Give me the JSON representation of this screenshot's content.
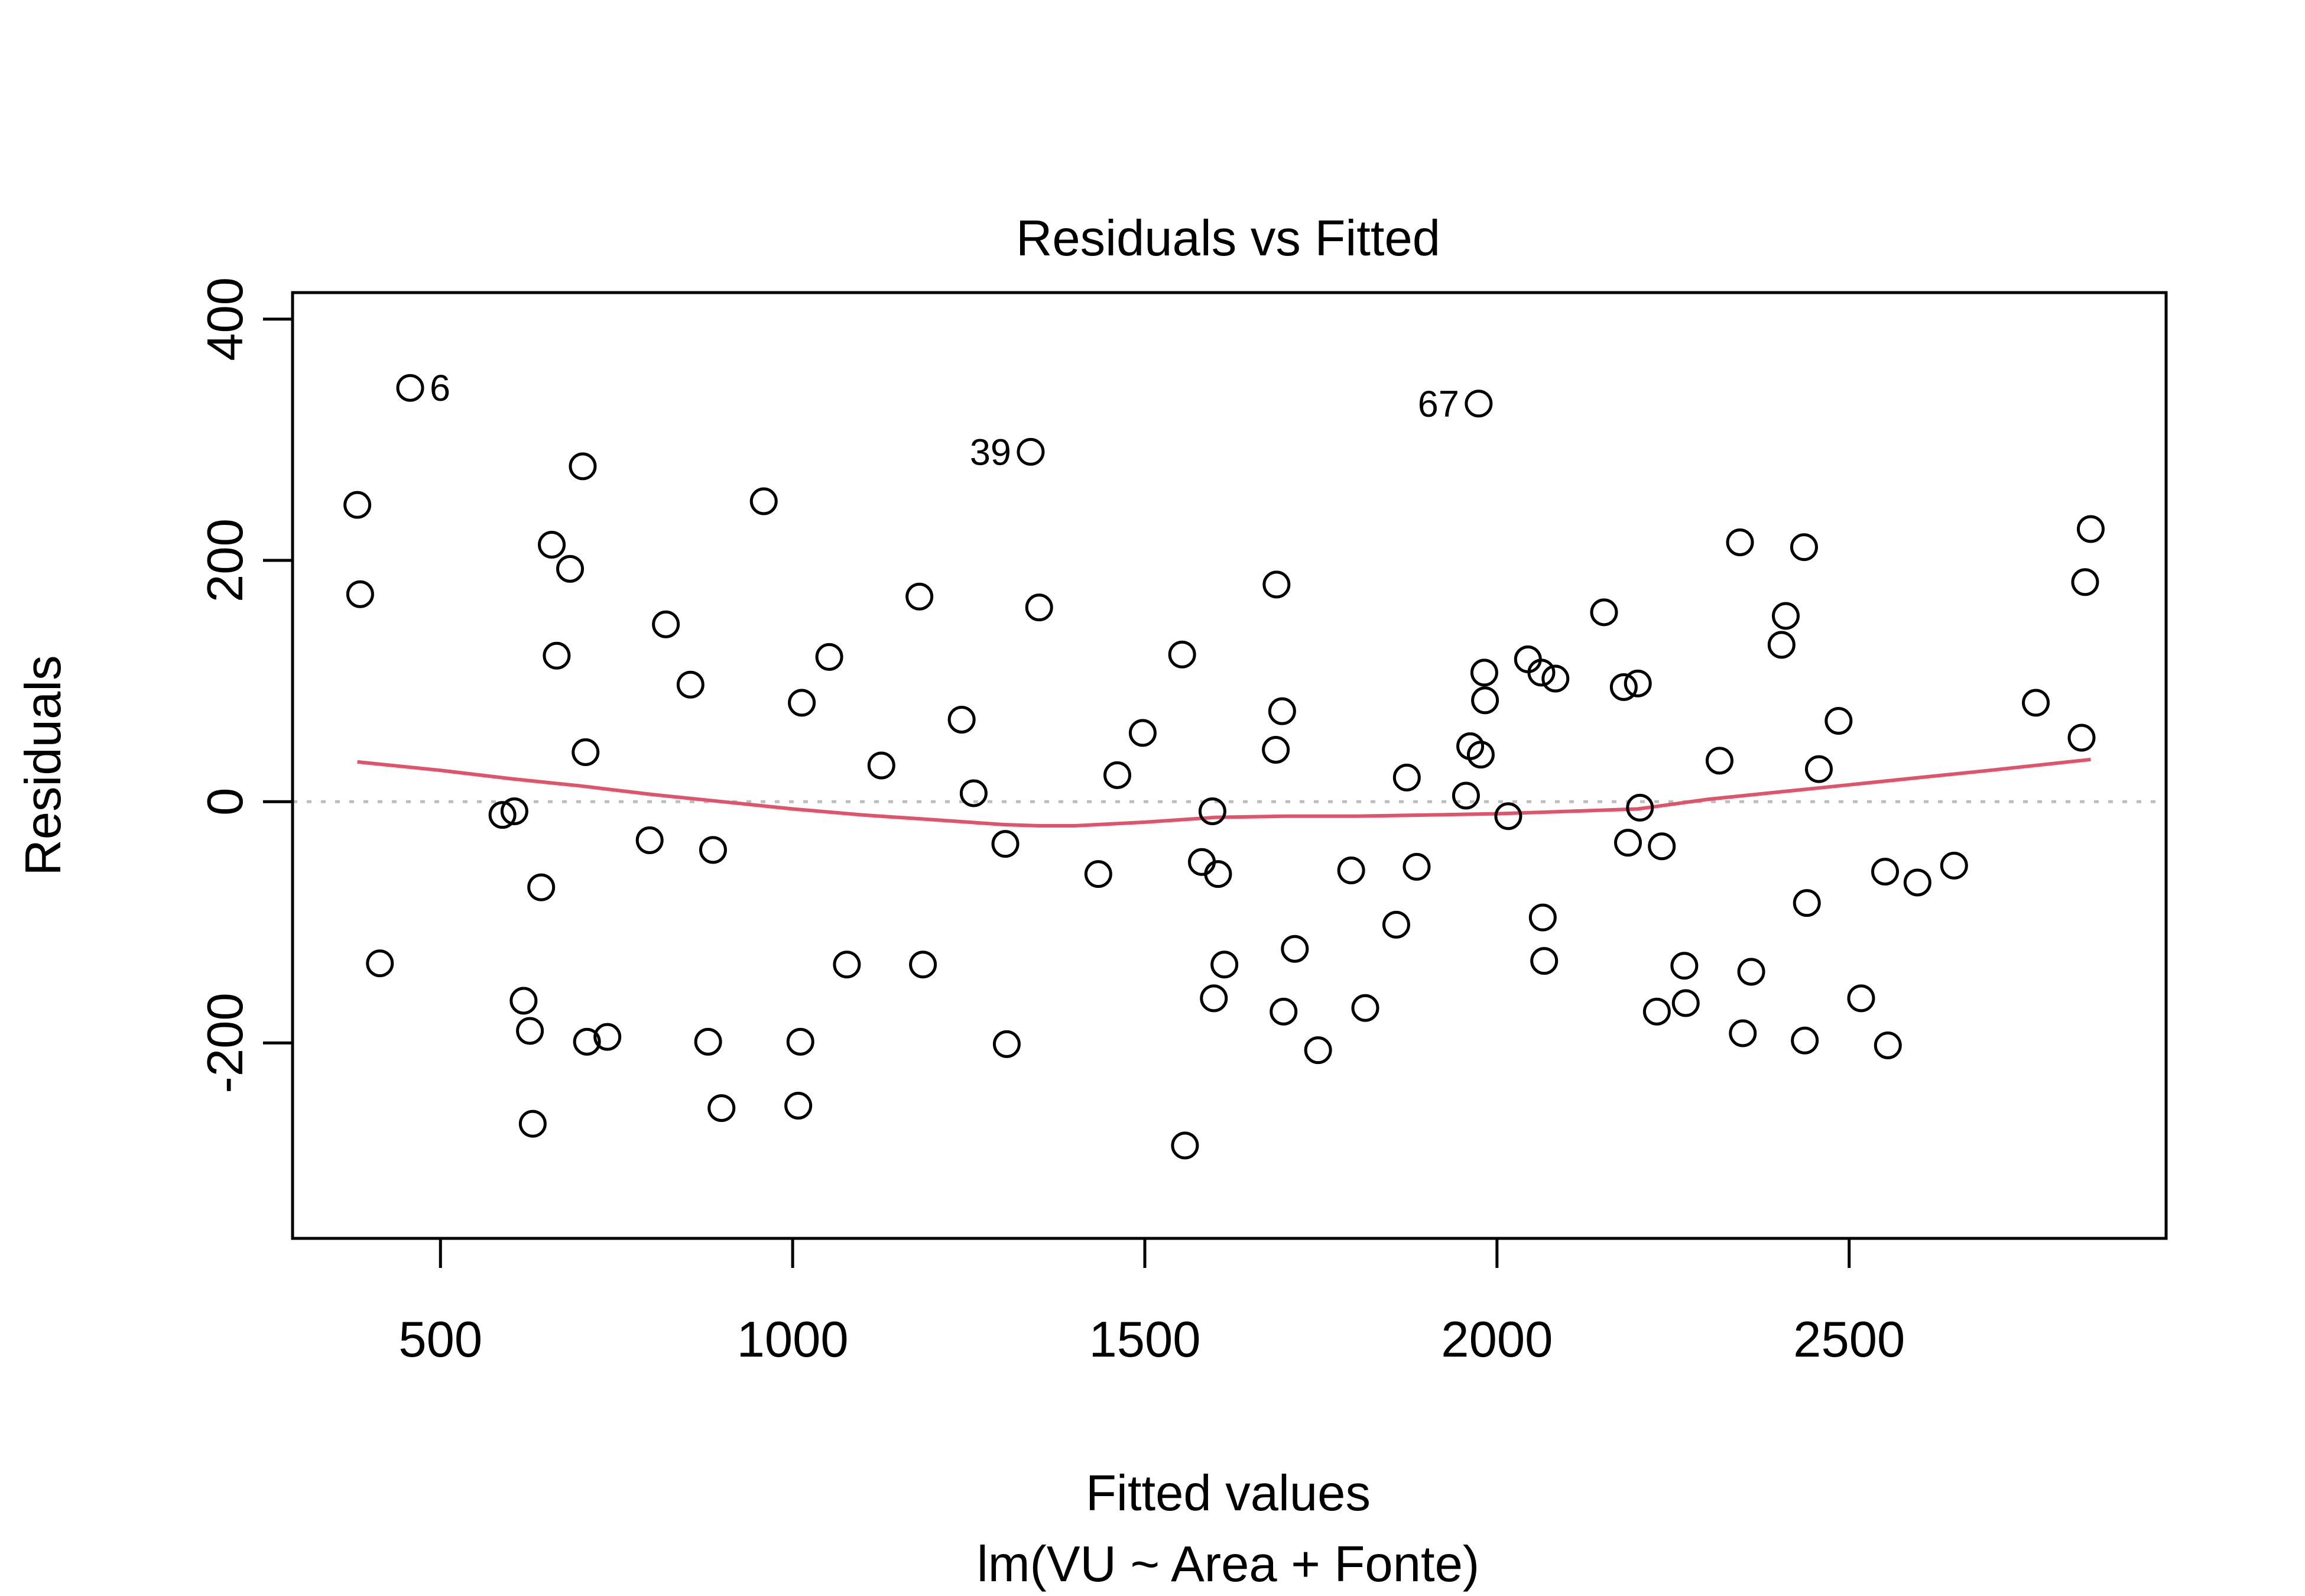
{
  "chart_data": {
    "type": "scatter",
    "title": "Residuals vs Fitted",
    "xlabel": "Fitted values",
    "subtitle": "lm(VU ~ Area + Fonte)",
    "ylabel": "Residuals",
    "xlim": [
      290,
      2950
    ],
    "ylim": [
      -362,
      422
    ],
    "xticks": [
      500,
      1000,
      1500,
      2000,
      2500
    ],
    "yticks": [
      -200,
      0,
      200,
      400
    ],
    "xtick_labels": [
      "500",
      "1000",
      "1500",
      "2000",
      "2500"
    ],
    "ytick_labels": [
      "-200",
      "0",
      "200",
      "400"
    ],
    "reference_line": {
      "y": 0,
      "style": "dotted",
      "color": "#bebebe"
    },
    "grid": false,
    "colors": {
      "points": "#000000",
      "smooth": "#df536b"
    },
    "points": [
      {
        "x": 457,
        "y": 343
      },
      {
        "x": 1338,
        "y": 290
      },
      {
        "x": 1974,
        "y": 330
      },
      {
        "x": 382,
        "y": 246
      },
      {
        "x": 386,
        "y": 172
      },
      {
        "x": 414,
        "y": -134
      },
      {
        "x": 588,
        "y": -11
      },
      {
        "x": 605,
        "y": -8
      },
      {
        "x": 618,
        "y": -165
      },
      {
        "x": 627,
        "y": -190
      },
      {
        "x": 631,
        "y": -267
      },
      {
        "x": 643,
        "y": -71
      },
      {
        "x": 658,
        "y": 213
      },
      {
        "x": 665,
        "y": 121
      },
      {
        "x": 684,
        "y": 193
      },
      {
        "x": 702,
        "y": 278
      },
      {
        "x": 706,
        "y": 41
      },
      {
        "x": 708,
        "y": -199
      },
      {
        "x": 737,
        "y": -195
      },
      {
        "x": 797,
        "y": -32
      },
      {
        "x": 820,
        "y": 147
      },
      {
        "x": 855,
        "y": 97
      },
      {
        "x": 880,
        "y": -199
      },
      {
        "x": 887,
        "y": -40
      },
      {
        "x": 899,
        "y": -254
      },
      {
        "x": 959,
        "y": 249
      },
      {
        "x": 1008,
        "y": -252
      },
      {
        "x": 1011,
        "y": -199
      },
      {
        "x": 1013,
        "y": 82
      },
      {
        "x": 1052,
        "y": 120
      },
      {
        "x": 1077,
        "y": -135
      },
      {
        "x": 1126,
        "y": 30
      },
      {
        "x": 1180,
        "y": 170
      },
      {
        "x": 1185,
        "y": -135
      },
      {
        "x": 1240,
        "y": 68
      },
      {
        "x": 1257,
        "y": 7
      },
      {
        "x": 1302,
        "y": -35
      },
      {
        "x": 1304,
        "y": -201
      },
      {
        "x": 1350,
        "y": 161
      },
      {
        "x": 1434,
        "y": -60
      },
      {
        "x": 1461,
        "y": 22
      },
      {
        "x": 1497,
        "y": 57
      },
      {
        "x": 1553,
        "y": 122
      },
      {
        "x": 1557,
        "y": -285
      },
      {
        "x": 1581,
        "y": -50
      },
      {
        "x": 1596,
        "y": -8
      },
      {
        "x": 1598,
        "y": -163
      },
      {
        "x": 1604,
        "y": -60
      },
      {
        "x": 1613,
        "y": -135
      },
      {
        "x": 1687,
        "y": 180
      },
      {
        "x": 1686,
        "y": 43
      },
      {
        "x": 1695,
        "y": 75
      },
      {
        "x": 1697,
        "y": -174
      },
      {
        "x": 1713,
        "y": -122
      },
      {
        "x": 1746,
        "y": -206
      },
      {
        "x": 1793,
        "y": -57
      },
      {
        "x": 1813,
        "y": -171
      },
      {
        "x": 1857,
        "y": -102
      },
      {
        "x": 1872,
        "y": 20
      },
      {
        "x": 1886,
        "y": -54
      },
      {
        "x": 1956,
        "y": 5
      },
      {
        "x": 1962,
        "y": 46
      },
      {
        "x": 1977,
        "y": 39
      },
      {
        "x": 1982,
        "y": 107
      },
      {
        "x": 1983,
        "y": 84
      },
      {
        "x": 2016,
        "y": -12
      },
      {
        "x": 2044,
        "y": 118
      },
      {
        "x": 2063,
        "y": 107
      },
      {
        "x": 2065,
        "y": -96
      },
      {
        "x": 2067,
        "y": -132
      },
      {
        "x": 2083,
        "y": 102
      },
      {
        "x": 2152,
        "y": 157
      },
      {
        "x": 2180,
        "y": 95
      },
      {
        "x": 2186,
        "y": -34
      },
      {
        "x": 2200,
        "y": 98
      },
      {
        "x": 2203,
        "y": -5
      },
      {
        "x": 2227,
        "y": -174
      },
      {
        "x": 2234,
        "y": -37
      },
      {
        "x": 2266,
        "y": -136
      },
      {
        "x": 2268,
        "y": -167
      },
      {
        "x": 2316,
        "y": 34
      },
      {
        "x": 2345,
        "y": 215
      },
      {
        "x": 2349,
        "y": -192
      },
      {
        "x": 2361,
        "y": -141
      },
      {
        "x": 2404,
        "y": 130
      },
      {
        "x": 2410,
        "y": 154
      },
      {
        "x": 2436,
        "y": 211
      },
      {
        "x": 2437,
        "y": -198
      },
      {
        "x": 2440,
        "y": -84
      },
      {
        "x": 2457,
        "y": 27
      },
      {
        "x": 2485,
        "y": 67
      },
      {
        "x": 2517,
        "y": -163
      },
      {
        "x": 2551,
        "y": -58
      },
      {
        "x": 2555,
        "y": -202
      },
      {
        "x": 2597,
        "y": -67
      },
      {
        "x": 2649,
        "y": -53
      },
      {
        "x": 2765,
        "y": 82
      },
      {
        "x": 2830,
        "y": 53
      },
      {
        "x": 2835,
        "y": 182
      },
      {
        "x": 2843,
        "y": 226
      }
    ],
    "labeled_points": [
      {
        "label": "6",
        "x": 457,
        "y": 343,
        "side": "right"
      },
      {
        "label": "39",
        "x": 1338,
        "y": 290,
        "side": "left"
      },
      {
        "label": "67",
        "x": 1974,
        "y": 330,
        "side": "left"
      }
    ],
    "smooth_line": {
      "x": [
        382,
        500,
        600,
        700,
        800,
        900,
        1000,
        1100,
        1200,
        1300,
        1350,
        1400,
        1500,
        1600,
        1700,
        1800,
        1900,
        2000,
        2100,
        2200,
        2300,
        2400,
        2500,
        2600,
        2700,
        2843
      ],
      "y": [
        33,
        26,
        19,
        13,
        6,
        0,
        -6,
        -11,
        -15,
        -19,
        -20,
        -20,
        -17,
        -13,
        -12,
        -12,
        -11,
        -10,
        -8,
        -6,
        2,
        8,
        14,
        20,
        26,
        35
      ]
    }
  }
}
